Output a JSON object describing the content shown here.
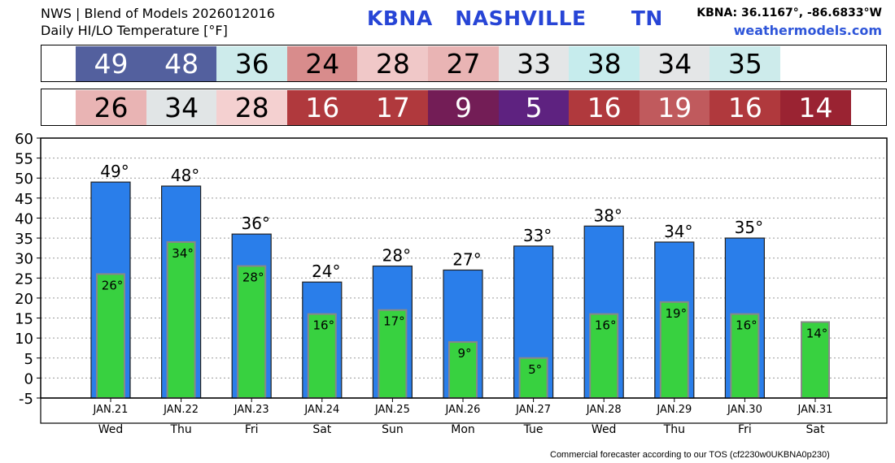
{
  "header": {
    "line1": "NWS | Blend of Models 2026012016",
    "line2": "Daily HI/LO Temperature [°F]",
    "station": "KBNA   NASHVILLE      TN",
    "coords": "KBNA: 36.1167°, -86.6833°W",
    "site": "weathermodels.com"
  },
  "hi_strip": {
    "values": [
      "49",
      "48",
      "36",
      "24",
      "28",
      "27",
      "33",
      "38",
      "34",
      "35"
    ],
    "colors": [
      "#53609e",
      "#53609e",
      "#cdebeb",
      "#d88c8c",
      "#f0c8c8",
      "#e9b4b4",
      "#e4e6e7",
      "#c6eced",
      "#e4e6e7",
      "#cdebeb"
    ],
    "text_colors": [
      "#ffffff",
      "#ffffff",
      "#000000",
      "#000000",
      "#000000",
      "#000000",
      "#000000",
      "#000000",
      "#000000",
      "#000000"
    ]
  },
  "lo_strip": {
    "values": [
      "26",
      "34",
      "28",
      "16",
      "17",
      "9",
      "5",
      "16",
      "19",
      "16",
      "14"
    ],
    "colors": [
      "#e9b4b4",
      "#e1e5e6",
      "#f4d0d0",
      "#b0393d",
      "#b0393d",
      "#731d56",
      "#5e2280",
      "#b0393d",
      "#c05a5d",
      "#b0393d",
      "#9a2332"
    ],
    "text_colors": [
      "#000000",
      "#000000",
      "#000000",
      "#ffffff",
      "#ffffff",
      "#ffffff",
      "#ffffff",
      "#ffffff",
      "#ffffff",
      "#ffffff",
      "#ffffff"
    ]
  },
  "footer": "Commercial forecaster according to our TOS (cf2230w0UKBNA0p230)",
  "chart_data": {
    "type": "bar",
    "categories": [
      "JAN.21",
      "JAN.22",
      "JAN.23",
      "JAN.24",
      "JAN.25",
      "JAN.26",
      "JAN.27",
      "JAN.28",
      "JAN.29",
      "JAN.30",
      "JAN.31"
    ],
    "weekdays": [
      "Wed",
      "Thu",
      "Fri",
      "Sat",
      "Sun",
      "Mon",
      "Tue",
      "Wed",
      "Thu",
      "Fri",
      "Sat"
    ],
    "series": [
      {
        "values": [
          49,
          48,
          36,
          24,
          28,
          27,
          33,
          38,
          34,
          35,
          null
        ],
        "color": "#2a7eea",
        "labels": [
          "49°",
          "48°",
          "36°",
          "24°",
          "28°",
          "27°",
          "33°",
          "38°",
          "34°",
          "35°",
          ""
        ]
      },
      {
        "values": [
          26,
          34,
          28,
          16,
          17,
          9,
          5,
          16,
          19,
          16,
          14
        ],
        "color": "#38d140",
        "labels": [
          "26°",
          "34°",
          "28°",
          "16°",
          "17°",
          "9°",
          "5°",
          "16°",
          "19°",
          "16°",
          "14°"
        ]
      }
    ],
    "y_ticks": [
      "60",
      "55",
      "50",
      "45",
      "40",
      "35",
      "30",
      "25",
      "20",
      "15",
      "10",
      "5",
      "0",
      "-5"
    ],
    "ylim": [
      -5,
      60
    ],
    "grid": true
  }
}
